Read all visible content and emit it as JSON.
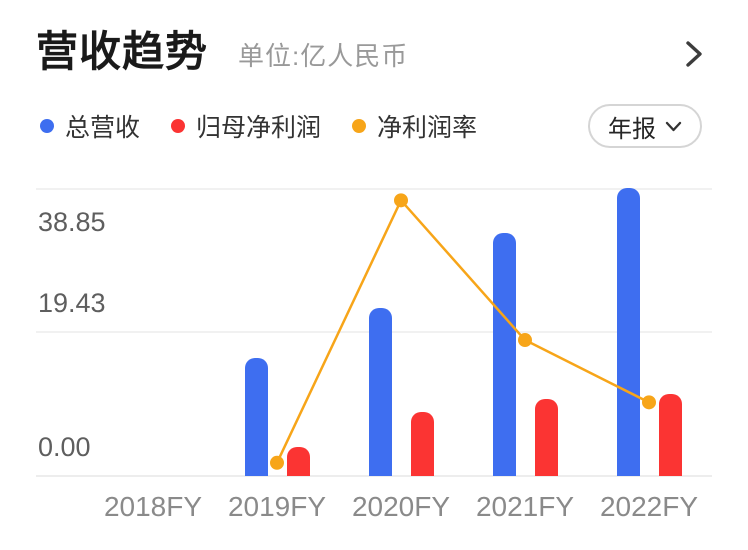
{
  "header": {
    "title": "营收趋势",
    "subtitle": "单位:亿人民币",
    "more_icon": "chevron-right"
  },
  "legend": {
    "items": [
      {
        "label": "总营收",
        "color": "#3e6ef0"
      },
      {
        "label": "归母净利润",
        "color": "#fb3433"
      },
      {
        "label": "净利润率",
        "color": "#f7a519"
      }
    ],
    "period_selector": {
      "label": "年报",
      "icon": "chevron-down"
    }
  },
  "colors": {
    "revenue": "#3e6ef0",
    "profit": "#fb3433",
    "margin": "#f7a519"
  },
  "chart_data": {
    "type": "bar",
    "subtype": "grouped bars + line overlay",
    "title": "营收趋势",
    "unit": "亿人民币",
    "categories": [
      "2018FY",
      "2019FY",
      "2020FY",
      "2021FY",
      "2022FY"
    ],
    "series": [
      {
        "name": "总营收",
        "type": "bar",
        "color": "#3e6ef0",
        "values": [
          null,
          16.0,
          22.7,
          32.9,
          39.0
        ]
      },
      {
        "name": "归母净利润",
        "type": "bar",
        "color": "#fb3433",
        "values": [
          null,
          3.9,
          8.7,
          10.4,
          11.1
        ]
      },
      {
        "name": "净利润率",
        "type": "line",
        "color": "#f7a519",
        "unit": "%",
        "values": [
          null,
          24.4,
          38.3,
          30.9,
          27.6
        ],
        "axis": "hidden",
        "axis_range": [
          23.7,
          38.9
        ]
      }
    ],
    "yticks": [
      "0.00",
      "19.43",
      "38.85"
    ],
    "ylim": [
      0,
      38.85
    ],
    "grid": true,
    "legend_position": "top"
  }
}
